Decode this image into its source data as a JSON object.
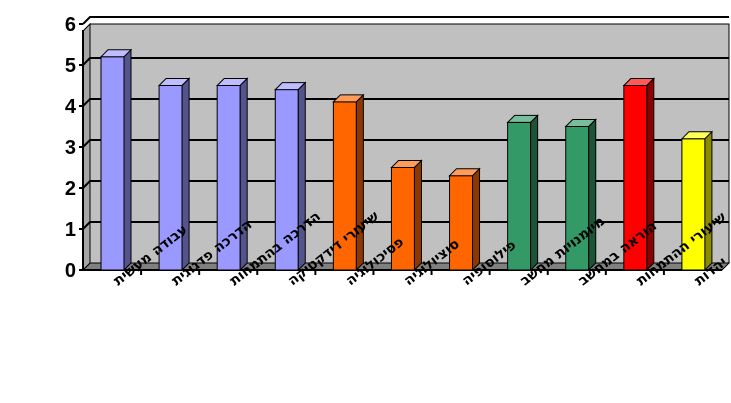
{
  "chart_data": {
    "type": "bar",
    "categories": [
      "עבודה מעשית",
      "הדרכה פדגוגית",
      "הדרכה בהתמחות",
      "שיעורי דידקטיקה",
      "פסיכולוגיה",
      "סוציולוגיה",
      "פילוסופיה",
      "מיומנויות מחשב",
      "הוראה במחשב",
      "שיעורי ההתמחות",
      "יהדות"
    ],
    "values": [
      5.2,
      4.5,
      4.5,
      4.4,
      4.1,
      2.5,
      2.3,
      3.6,
      3.5,
      4.5,
      3.2
    ],
    "colors": [
      "#9999ff",
      "#9999ff",
      "#9999ff",
      "#9999ff",
      "#ff6600",
      "#ff6600",
      "#ff6600",
      "#339966",
      "#339966",
      "#ff0000",
      "#ffff00"
    ],
    "ylim": [
      0,
      6
    ],
    "yticks": [
      "0",
      "1",
      "2",
      "3",
      "4",
      "5",
      "6"
    ],
    "grid": true,
    "plot_background": "#c0c0c0",
    "title": "",
    "xlabel": "",
    "ylabel": ""
  }
}
